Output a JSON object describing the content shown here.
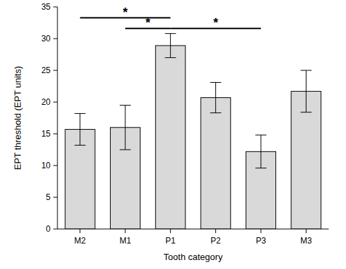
{
  "chart_data": {
    "type": "bar",
    "x_label": "Tooth category",
    "y_label": "EPT threshold (EPT units)",
    "categories": [
      "M2",
      "M1",
      "P1",
      "P2",
      "P3",
      "M3"
    ],
    "values": [
      15.7,
      16.0,
      28.9,
      20.7,
      12.2,
      21.7
    ],
    "errors": [
      2.5,
      3.5,
      1.9,
      2.4,
      2.6,
      3.3
    ],
    "color": "#d9d9d9",
    "ylim": [
      0,
      35
    ],
    "yticks": [
      0,
      5,
      10,
      15,
      20,
      25,
      30,
      35
    ],
    "grid": false,
    "annotations": [
      {
        "from": "M2",
        "to": "P1",
        "label": "*",
        "y": 33.3
      },
      {
        "from": "M1",
        "to": "P1",
        "label": "*",
        "y": 31.6
      },
      {
        "from": "P1",
        "to": "P3",
        "label": "*",
        "y": 31.6
      }
    ]
  }
}
